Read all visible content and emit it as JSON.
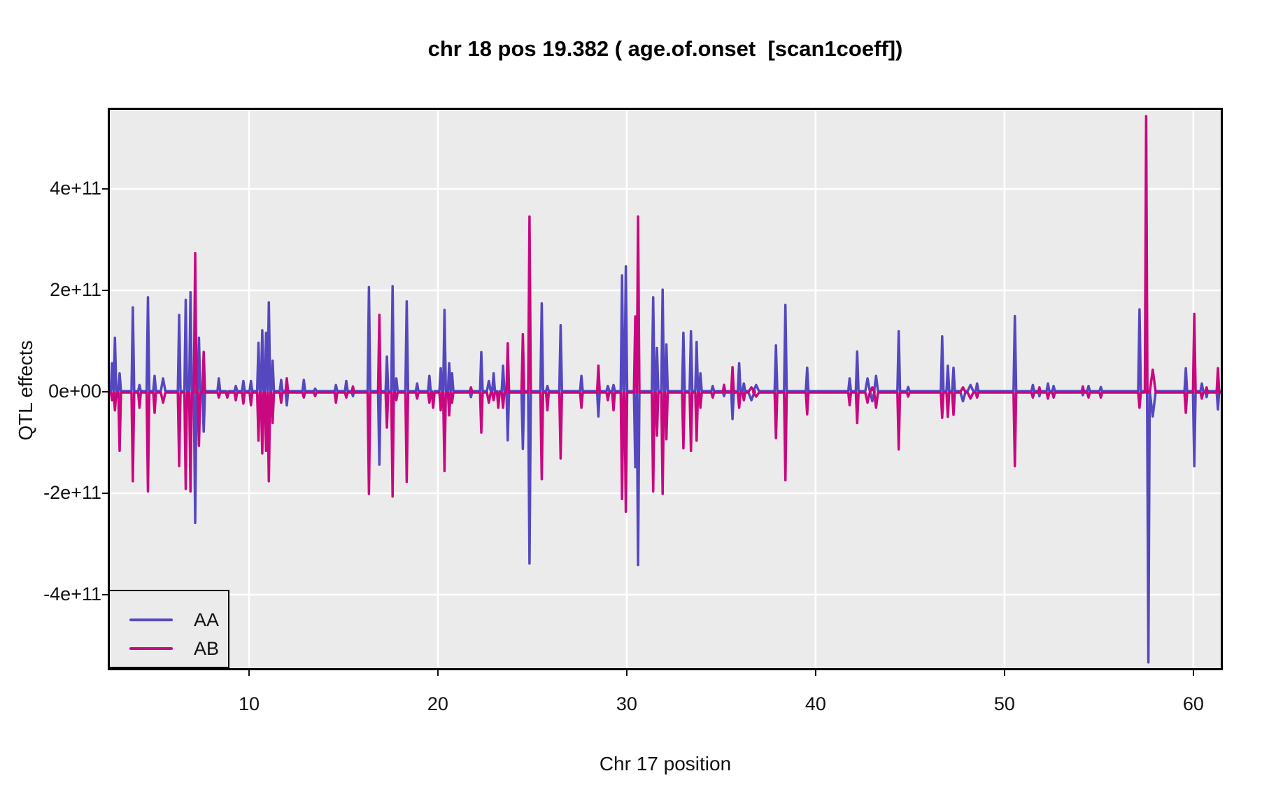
{
  "title": "chr 18 pos 19.382 ( age.of.onset  [scan1coeff])",
  "colors": {
    "aa_line": "#5547C0",
    "ab_line": "#C9077E",
    "panel_bg": "#EBEBEB",
    "grid": "#FFFFFF",
    "panel_border": "#000000",
    "text": "#111111",
    "page_bg": "#FFFFFF"
  },
  "chart_data": {
    "type": "line",
    "title": "chr 18 pos 19.382 ( age.of.onset  [scan1coeff])",
    "xlabel": "Chr 17 position",
    "ylabel": "QTL effects",
    "grid": true,
    "legend_position": "bottom-left",
    "x_ticks": [
      10,
      20,
      30,
      40,
      50,
      60
    ],
    "y_ticks": [
      "4e+11",
      "2e+11",
      "0e+00",
      "-2e+11",
      "-4e+11"
    ],
    "y_tick_values_1e11": [
      4,
      2,
      0,
      -2,
      -4
    ],
    "xlim": [
      2.63,
      61.45
    ],
    "ylim_1e11": [
      -5.45,
      5.56
    ],
    "series": [
      {
        "name": "AA",
        "color": "#5547C0"
      },
      {
        "name": "AB",
        "color": "#C9077E"
      }
    ],
    "note": "Both series are ~0 between spikes. Each spike row is [position, AA_value, AB_value, optional_half_width_pos_units]; values are in units of 1e11.",
    "spikes_1e11": [
      [
        2.75,
        0.55,
        -0.15
      ],
      [
        2.9,
        1.05,
        -0.35
      ],
      [
        3.15,
        0.35,
        -1.15
      ],
      [
        3.85,
        1.65,
        -1.75
      ],
      [
        4.2,
        0.12,
        -0.3
      ],
      [
        4.65,
        1.85,
        -1.95
      ],
      [
        5.0,
        0.3,
        -0.4
      ],
      [
        5.45,
        0.25,
        -0.2,
        0.12
      ],
      [
        6.3,
        1.5,
        -1.45
      ],
      [
        6.65,
        1.8,
        -1.9
      ],
      [
        6.9,
        1.95,
        -1.95
      ],
      [
        7.15,
        -2.6,
        2.75
      ],
      [
        7.35,
        1.05,
        -1.05
      ],
      [
        7.6,
        -0.8,
        0.8
      ],
      [
        8.4,
        0.25,
        -0.1
      ],
      [
        8.85,
        -0.05,
        -0.1
      ],
      [
        9.3,
        0.1,
        -0.15
      ],
      [
        9.7,
        0.2,
        -0.22
      ],
      [
        10.1,
        0.2,
        -0.25
      ],
      [
        10.5,
        0.95,
        -0.95
      ],
      [
        10.7,
        1.2,
        -1.2
      ],
      [
        10.9,
        1.15,
        -1.15
      ],
      [
        11.05,
        1.75,
        -1.75
      ],
      [
        11.25,
        0.6,
        -0.6
      ],
      [
        11.7,
        0.22,
        -0.2
      ],
      [
        12.0,
        -0.28,
        0.28
      ],
      [
        12.9,
        0.22,
        -0.1
      ],
      [
        13.5,
        0.05,
        -0.07
      ],
      [
        14.6,
        0.12,
        -0.2
      ],
      [
        15.15,
        0.2,
        -0.1
      ],
      [
        15.5,
        -0.1,
        0.12
      ],
      [
        16.35,
        2.05,
        -2.0
      ],
      [
        16.9,
        -1.45,
        1.53
      ],
      [
        17.3,
        0.68,
        -0.69
      ],
      [
        17.6,
        2.07,
        -2.05
      ],
      [
        17.8,
        0.25,
        -0.15
      ],
      [
        18.35,
        1.77,
        -1.76
      ],
      [
        18.9,
        0.15,
        -0.12
      ],
      [
        19.55,
        0.3,
        -0.2
      ],
      [
        19.75,
        -0.25,
        -0.3
      ],
      [
        20.15,
        0.45,
        -0.35
      ],
      [
        20.35,
        1.6,
        -1.55
      ],
      [
        20.6,
        0.55,
        -0.45
      ],
      [
        20.75,
        0.35,
        -0.2
      ],
      [
        21.75,
        -0.12,
        0.1
      ],
      [
        22.3,
        0.77,
        -0.79
      ],
      [
        22.7,
        0.2,
        -0.2,
        0.1
      ],
      [
        22.95,
        0.35,
        -0.15
      ],
      [
        23.2,
        -0.28,
        -0.3
      ],
      [
        23.45,
        0.5,
        -0.3
      ],
      [
        23.7,
        -0.97,
        0.97
      ],
      [
        24.5,
        -1.14,
        1.15
      ],
      [
        24.85,
        -3.4,
        3.47
      ],
      [
        25.5,
        1.73,
        -1.71
      ],
      [
        25.8,
        0.1,
        -0.35
      ],
      [
        26.5,
        1.3,
        -1.3
      ],
      [
        27.6,
        0.3,
        -0.3
      ],
      [
        28.5,
        -0.5,
        0.53
      ],
      [
        29.0,
        0.1,
        -0.15
      ],
      [
        29.3,
        0.12,
        -0.35
      ],
      [
        29.75,
        2.28,
        -2.1
      ],
      [
        29.95,
        2.46,
        -2.35
      ],
      [
        30.45,
        -1.5,
        1.5
      ],
      [
        30.6,
        -3.43,
        3.47
      ],
      [
        31.4,
        1.85,
        -1.95
      ],
      [
        31.6,
        0.85,
        -0.85
      ],
      [
        31.9,
        2.0,
        -2.0
      ],
      [
        32.1,
        0.92,
        -0.92
      ],
      [
        33.0,
        1.15,
        -1.1
      ],
      [
        33.4,
        1.18,
        -1.15
      ],
      [
        33.7,
        0.97,
        -0.95
      ],
      [
        33.9,
        0.35,
        -0.3
      ],
      [
        34.55,
        0.1,
        -0.1
      ],
      [
        35.15,
        -0.1,
        0.15
      ],
      [
        35.6,
        -0.55,
        0.5
      ],
      [
        35.95,
        0.55,
        -0.3
      ],
      [
        36.2,
        0.15,
        -0.15
      ],
      [
        36.6,
        -0.18,
        0.1,
        0.18
      ],
      [
        36.85,
        0.12,
        -0.08,
        0.15
      ],
      [
        37.9,
        0.9,
        -0.9
      ],
      [
        38.4,
        1.7,
        -1.73
      ],
      [
        39.55,
        0.46,
        -0.43
      ],
      [
        41.8,
        0.25,
        -0.25
      ],
      [
        42.2,
        0.78,
        -0.6
      ],
      [
        42.75,
        0.25,
        -0.2,
        0.12
      ],
      [
        43.0,
        -0.2,
        0.1,
        0.12
      ],
      [
        43.2,
        0.3,
        -0.3,
        0.1
      ],
      [
        44.4,
        1.18,
        -1.12
      ],
      [
        44.9,
        0.08,
        -0.08
      ],
      [
        46.7,
        1.08,
        -0.5
      ],
      [
        47.0,
        0.5,
        -0.48
      ],
      [
        47.3,
        0.46,
        -0.44
      ],
      [
        47.8,
        -0.2,
        0.1,
        0.15
      ],
      [
        48.2,
        0.12,
        -0.12,
        0.15
      ],
      [
        48.55,
        0.15,
        -0.1
      ],
      [
        50.55,
        1.48,
        -1.45
      ],
      [
        51.5,
        0.12,
        -0.1
      ],
      [
        51.85,
        -0.1,
        0.1
      ],
      [
        52.3,
        0.15,
        -0.12
      ],
      [
        52.6,
        0.1,
        -0.1
      ],
      [
        54.15,
        -0.08,
        0.12
      ],
      [
        54.45,
        0.1,
        -0.1
      ],
      [
        55.1,
        0.08,
        -0.1
      ],
      [
        57.15,
        1.61,
        -0.3
      ],
      [
        57.5,
        0,
        5.45
      ],
      [
        57.62,
        -5.35,
        0
      ],
      [
        57.85,
        -0.5,
        0.45,
        0.16
      ],
      [
        59.6,
        0.45,
        -0.4
      ],
      [
        60.05,
        -1.48,
        1.55
      ],
      [
        60.45,
        0.15,
        -0.12
      ],
      [
        60.7,
        -0.12,
        0.1
      ],
      [
        61.3,
        -0.36,
        0.48
      ]
    ]
  }
}
